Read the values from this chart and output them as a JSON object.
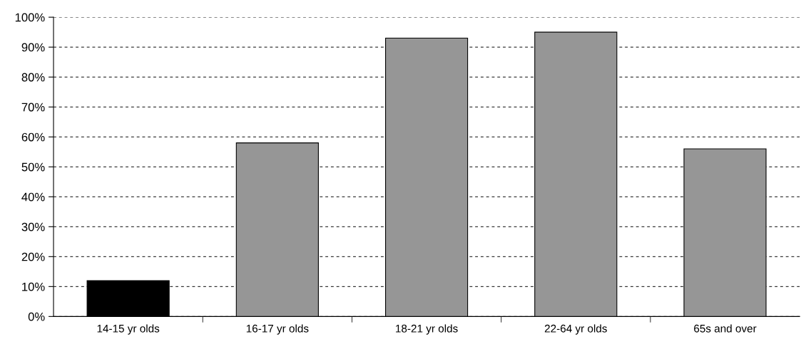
{
  "chart_data": {
    "type": "bar",
    "categories": [
      "14-15 yr olds",
      "16-17 yr olds",
      "18-21 yr olds",
      "22-64 yr olds",
      "65s and over"
    ],
    "values": [
      12,
      58,
      93,
      95,
      56
    ],
    "colors": [
      "#000000",
      "#969696",
      "#969696",
      "#969696",
      "#969696"
    ],
    "ylim": [
      0,
      100
    ],
    "yticks": [
      {
        "value": 0,
        "label": "0%"
      },
      {
        "value": 10,
        "label": "10%"
      },
      {
        "value": 20,
        "label": "20%"
      },
      {
        "value": 30,
        "label": "30%"
      },
      {
        "value": 40,
        "label": "40%"
      },
      {
        "value": 50,
        "label": "50%"
      },
      {
        "value": 60,
        "label": "60%"
      },
      {
        "value": 70,
        "label": "70%"
      },
      {
        "value": 80,
        "label": "80%"
      },
      {
        "value": 90,
        "label": "90%"
      },
      {
        "value": 100,
        "label": "100%"
      }
    ],
    "grid": "y",
    "line_style": "dashed"
  }
}
